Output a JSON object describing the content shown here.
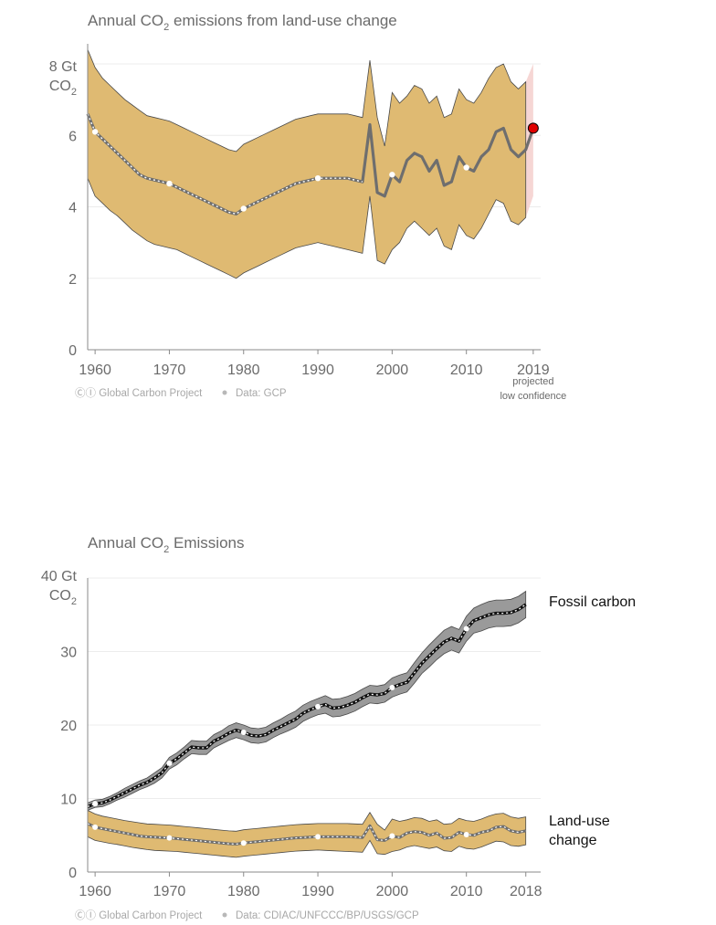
{
  "chart_data": [
    {
      "type": "area",
      "title": "Annual CO",
      "title_sub": "2",
      "title_rest": " emissions from land-use change",
      "y_unit_top": "8 Gt",
      "y_unit_bottom": "CO",
      "y_unit_sub": "2",
      "ylim": [
        0,
        8.6
      ],
      "xlim": [
        1959,
        2020
      ],
      "y_ticks": [
        0,
        2,
        4,
        6
      ],
      "x_ticks": [
        1960,
        1970,
        1980,
        1990,
        2000,
        2010
      ],
      "x_tick_labels": [
        "1960",
        "1970",
        "1980",
        "1990",
        "2000",
        "2010"
      ],
      "projection_year_label": "2019",
      "projection_note": [
        "projected",
        "low confidence"
      ],
      "credit": "ⒸⒾ Global Carbon Project",
      "data_source": "Data: GCP",
      "grid": true,
      "colors": {
        "band": "#dfba72",
        "line": "#6e6e6e",
        "dots": "#ffffff",
        "projection_band": "#f6d6d4",
        "projection_point": "#e00000"
      },
      "series": [
        {
          "name": "Land-use change",
          "x": [
            1959,
            1960,
            1961,
            1962,
            1963,
            1964,
            1965,
            1966,
            1967,
            1968,
            1969,
            1970,
            1971,
            1972,
            1973,
            1974,
            1975,
            1976,
            1977,
            1978,
            1979,
            1980,
            1981,
            1982,
            1983,
            1984,
            1985,
            1986,
            1987,
            1988,
            1989,
            1990,
            1991,
            1992,
            1993,
            1994,
            1995,
            1996,
            1997,
            1998,
            1999,
            2000,
            2001,
            2002,
            2003,
            2004,
            2005,
            2006,
            2007,
            2008,
            2009,
            2010,
            2011,
            2012,
            2013,
            2014,
            2015,
            2016,
            2017,
            2018
          ],
          "y": [
            6.6,
            6.1,
            5.9,
            5.7,
            5.5,
            5.3,
            5.1,
            4.9,
            4.8,
            4.75,
            4.7,
            4.65,
            4.55,
            4.45,
            4.35,
            4.25,
            4.15,
            4.05,
            3.95,
            3.85,
            3.8,
            3.95,
            4.05,
            4.15,
            4.25,
            4.35,
            4.45,
            4.55,
            4.65,
            4.7,
            4.75,
            4.8,
            4.8,
            4.8,
            4.8,
            4.8,
            4.75,
            4.7,
            6.3,
            4.4,
            4.3,
            4.9,
            4.7,
            5.3,
            5.5,
            5.4,
            5.0,
            5.3,
            4.6,
            4.7,
            5.4,
            5.1,
            5.0,
            5.4,
            5.6,
            6.1,
            6.2,
            5.6,
            5.4,
            5.6
          ],
          "lower": [
            4.8,
            4.3,
            4.1,
            3.9,
            3.75,
            3.55,
            3.35,
            3.2,
            3.05,
            2.95,
            2.9,
            2.85,
            2.8,
            2.7,
            2.6,
            2.5,
            2.4,
            2.3,
            2.2,
            2.1,
            2.0,
            2.15,
            2.25,
            2.35,
            2.45,
            2.55,
            2.65,
            2.75,
            2.85,
            2.9,
            2.95,
            3.0,
            2.95,
            2.9,
            2.85,
            2.8,
            2.75,
            2.7,
            4.3,
            2.5,
            2.4,
            2.8,
            3.0,
            3.4,
            3.6,
            3.4,
            3.2,
            3.4,
            2.9,
            2.8,
            3.5,
            3.2,
            3.1,
            3.4,
            3.8,
            4.2,
            4.1,
            3.6,
            3.5,
            3.7
          ],
          "upper": [
            8.4,
            7.9,
            7.6,
            7.4,
            7.2,
            7.0,
            6.85,
            6.7,
            6.55,
            6.5,
            6.45,
            6.4,
            6.3,
            6.2,
            6.1,
            6.0,
            5.9,
            5.8,
            5.7,
            5.6,
            5.55,
            5.75,
            5.85,
            5.95,
            6.05,
            6.15,
            6.25,
            6.35,
            6.45,
            6.5,
            6.55,
            6.6,
            6.6,
            6.6,
            6.6,
            6.6,
            6.55,
            6.5,
            8.1,
            6.5,
            5.7,
            7.2,
            6.9,
            7.1,
            7.4,
            7.3,
            6.9,
            7.1,
            6.5,
            6.6,
            7.3,
            7.0,
            6.9,
            7.2,
            7.6,
            7.9,
            8.0,
            7.5,
            7.3,
            7.5
          ]
        }
      ],
      "marker_years": [
        1960,
        1970,
        1980,
        1990,
        2000,
        2010
      ],
      "projection": {
        "x_start": 2018,
        "x": 2019,
        "y": 6.2,
        "lower": 4.3,
        "upper": 8.0
      }
    },
    {
      "type": "area",
      "title": "Annual CO",
      "title_sub": "2",
      "title_rest": " Emissions",
      "y_unit_top": "40 Gt",
      "y_unit_bottom": "CO",
      "y_unit_sub": "2",
      "ylim": [
        0,
        40
      ],
      "xlim": [
        1959,
        2020
      ],
      "y_ticks": [
        0,
        10,
        20,
        30
      ],
      "x_ticks": [
        1960,
        1970,
        1980,
        1990,
        2000,
        2010,
        2018
      ],
      "x_tick_labels": [
        "1960",
        "1970",
        "1980",
        "1990",
        "2000",
        "2010",
        "2018"
      ],
      "credit": "ⒸⒾ Global Carbon Project",
      "data_source": "Data: CDIAC/UNFCCC/BP/USGS/GCP",
      "grid": true,
      "colors": {
        "fossil_band": "#9a9a9a",
        "fossil_line": "#111111",
        "land_band": "#dfba72",
        "land_line": "#6e6e6e",
        "dots": "#ffffff"
      },
      "series": [
        {
          "name": "Fossil carbon",
          "label": "Fossil carbon",
          "x": [
            1959,
            1960,
            1961,
            1962,
            1963,
            1964,
            1965,
            1966,
            1967,
            1968,
            1969,
            1970,
            1971,
            1972,
            1973,
            1974,
            1975,
            1976,
            1977,
            1978,
            1979,
            1980,
            1981,
            1982,
            1983,
            1984,
            1985,
            1986,
            1987,
            1988,
            1989,
            1990,
            1991,
            1992,
            1993,
            1994,
            1995,
            1996,
            1997,
            1998,
            1999,
            2000,
            2001,
            2002,
            2003,
            2004,
            2005,
            2006,
            2007,
            2008,
            2009,
            2010,
            2011,
            2012,
            2013,
            2014,
            2015,
            2016,
            2017,
            2018
          ],
          "y": [
            8.9,
            9.3,
            9.4,
            9.8,
            10.3,
            10.8,
            11.3,
            11.8,
            12.2,
            12.8,
            13.5,
            14.8,
            15.4,
            16.2,
            17.0,
            16.9,
            16.9,
            17.8,
            18.3,
            18.9,
            19.3,
            19.0,
            18.6,
            18.5,
            18.7,
            19.3,
            19.8,
            20.3,
            20.8,
            21.6,
            22.1,
            22.5,
            22.8,
            22.3,
            22.4,
            22.7,
            23.1,
            23.7,
            24.2,
            24.1,
            24.3,
            25.1,
            25.5,
            25.8,
            27.1,
            28.4,
            29.4,
            30.4,
            31.3,
            31.8,
            31.4,
            33.1,
            34.2,
            34.6,
            35.0,
            35.2,
            35.2,
            35.3,
            35.7,
            36.4
          ],
          "lower": [
            8.4,
            8.8,
            8.9,
            9.3,
            9.8,
            10.2,
            10.7,
            11.2,
            11.6,
            12.1,
            12.8,
            14.0,
            14.6,
            15.4,
            16.1,
            16.0,
            16.0,
            16.9,
            17.4,
            17.9,
            18.3,
            18.0,
            17.6,
            17.5,
            17.7,
            18.3,
            18.8,
            19.2,
            19.7,
            20.5,
            21.0,
            21.4,
            21.6,
            21.1,
            21.2,
            21.5,
            21.9,
            22.5,
            23.0,
            22.9,
            23.1,
            23.8,
            24.2,
            24.5,
            25.7,
            27.0,
            27.9,
            28.9,
            29.7,
            30.2,
            29.8,
            31.4,
            32.5,
            32.8,
            33.2,
            33.4,
            33.4,
            33.5,
            33.9,
            34.6
          ],
          "upper": [
            9.4,
            9.8,
            9.9,
            10.3,
            10.8,
            11.4,
            11.9,
            12.4,
            12.8,
            13.5,
            14.2,
            15.6,
            16.2,
            17.0,
            17.9,
            17.8,
            17.8,
            18.7,
            19.2,
            19.9,
            20.3,
            20.0,
            19.6,
            19.5,
            19.7,
            20.3,
            20.8,
            21.4,
            21.9,
            22.7,
            23.2,
            23.6,
            24.0,
            23.5,
            23.6,
            23.9,
            24.3,
            24.9,
            25.4,
            25.3,
            25.5,
            26.4,
            26.8,
            27.1,
            28.5,
            29.8,
            30.9,
            31.9,
            32.9,
            33.4,
            33.0,
            34.8,
            35.9,
            36.4,
            36.8,
            37.0,
            37.0,
            37.1,
            37.5,
            38.2
          ]
        },
        {
          "name": "Land-use change",
          "label_line1": "Land-use",
          "label_line2": "change",
          "x": [
            1959,
            1960,
            1961,
            1962,
            1963,
            1964,
            1965,
            1966,
            1967,
            1968,
            1969,
            1970,
            1971,
            1972,
            1973,
            1974,
            1975,
            1976,
            1977,
            1978,
            1979,
            1980,
            1981,
            1982,
            1983,
            1984,
            1985,
            1986,
            1987,
            1988,
            1989,
            1990,
            1991,
            1992,
            1993,
            1994,
            1995,
            1996,
            1997,
            1998,
            1999,
            2000,
            2001,
            2002,
            2003,
            2004,
            2005,
            2006,
            2007,
            2008,
            2009,
            2010,
            2011,
            2012,
            2013,
            2014,
            2015,
            2016,
            2017,
            2018
          ],
          "y": [
            6.6,
            6.1,
            5.9,
            5.7,
            5.5,
            5.3,
            5.1,
            4.9,
            4.8,
            4.75,
            4.7,
            4.65,
            4.55,
            4.45,
            4.35,
            4.25,
            4.15,
            4.05,
            3.95,
            3.85,
            3.8,
            3.95,
            4.05,
            4.15,
            4.25,
            4.35,
            4.45,
            4.55,
            4.65,
            4.7,
            4.75,
            4.8,
            4.8,
            4.8,
            4.8,
            4.8,
            4.75,
            4.7,
            6.3,
            4.4,
            4.3,
            4.9,
            4.7,
            5.3,
            5.5,
            5.4,
            5.0,
            5.3,
            4.6,
            4.7,
            5.4,
            5.1,
            5.0,
            5.4,
            5.6,
            6.1,
            6.2,
            5.6,
            5.4,
            5.6
          ],
          "lower": [
            4.8,
            4.3,
            4.1,
            3.9,
            3.75,
            3.55,
            3.35,
            3.2,
            3.05,
            2.95,
            2.9,
            2.85,
            2.8,
            2.7,
            2.6,
            2.5,
            2.4,
            2.3,
            2.2,
            2.1,
            2.0,
            2.15,
            2.25,
            2.35,
            2.45,
            2.55,
            2.65,
            2.75,
            2.85,
            2.9,
            2.95,
            3.0,
            2.95,
            2.9,
            2.85,
            2.8,
            2.75,
            2.7,
            4.3,
            2.5,
            2.4,
            2.8,
            3.0,
            3.4,
            3.6,
            3.4,
            3.2,
            3.4,
            2.9,
            2.8,
            3.5,
            3.2,
            3.1,
            3.4,
            3.8,
            4.2,
            4.1,
            3.6,
            3.5,
            3.7
          ],
          "upper": [
            8.4,
            7.9,
            7.6,
            7.4,
            7.2,
            7.0,
            6.85,
            6.7,
            6.55,
            6.5,
            6.45,
            6.4,
            6.3,
            6.2,
            6.1,
            6.0,
            5.9,
            5.8,
            5.7,
            5.6,
            5.55,
            5.75,
            5.85,
            5.95,
            6.05,
            6.15,
            6.25,
            6.35,
            6.45,
            6.5,
            6.55,
            6.6,
            6.6,
            6.6,
            6.6,
            6.6,
            6.55,
            6.5,
            8.1,
            6.5,
            5.7,
            7.2,
            6.9,
            7.1,
            7.4,
            7.3,
            6.9,
            7.1,
            6.5,
            6.6,
            7.3,
            7.0,
            6.9,
            7.2,
            7.6,
            7.9,
            8.0,
            7.5,
            7.3,
            7.5
          ]
        }
      ],
      "marker_years": [
        1960,
        1970,
        1980,
        1990,
        2000,
        2010
      ]
    }
  ]
}
